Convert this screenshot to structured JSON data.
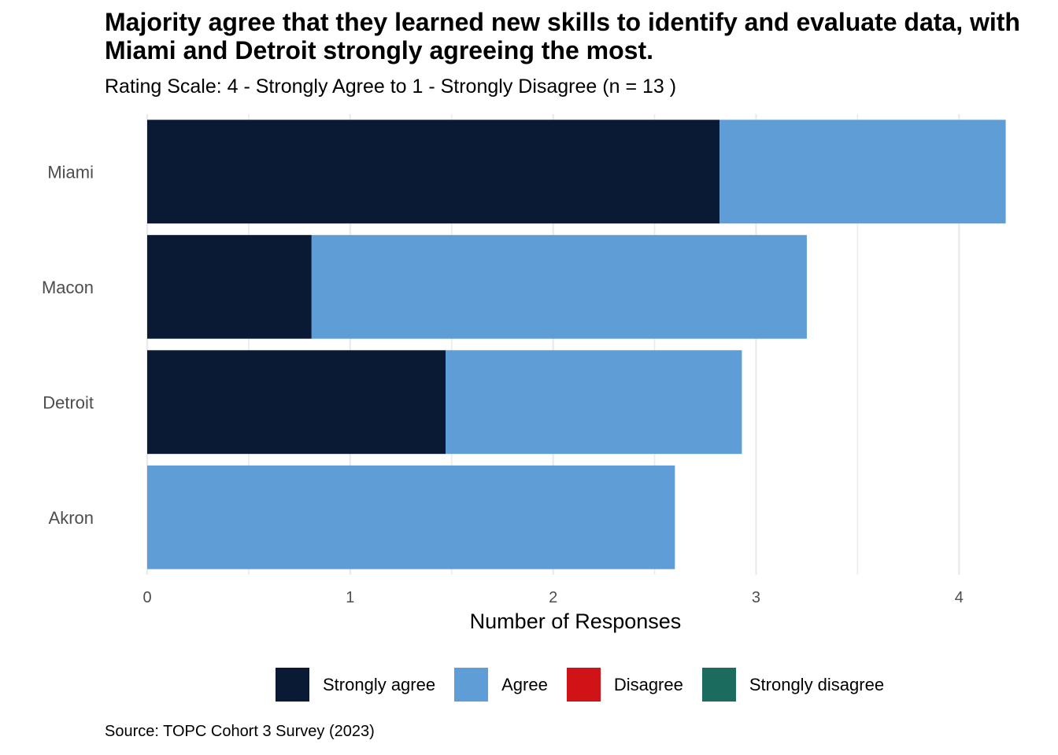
{
  "title": "Majority agree that they learned new skills to identify and evaluate data, with Miami and Detroit strongly agreeing the most.",
  "subtitle": "Rating Scale: 4 - Strongly Agree to 1 - Strongly Disagree (n = 13 )",
  "source": "Source: TOPC Cohort 3 Survey (2023)",
  "chart_data": {
    "type": "bar",
    "orientation": "horizontal",
    "stacked": true,
    "title": "Majority agree that they learned new skills to identify and evaluate data, with Miami and Detroit strongly agreeing the most.",
    "subtitle": "Rating Scale: 4 - Strongly Agree to 1 - Strongly Disagree (n = 13 )",
    "xlabel": "Number of Responses",
    "ylabel": "",
    "categories": [
      "Miami",
      "Macon",
      "Detroit",
      "Akron"
    ],
    "xlim": [
      0,
      4.22
    ],
    "xticks": [
      0,
      1,
      2,
      3,
      4
    ],
    "grid": true,
    "legend_position": "bottom",
    "series": [
      {
        "name": "Strongly agree",
        "color": "#0a1a35",
        "values": [
          2.82,
          0.81,
          1.47,
          0
        ]
      },
      {
        "name": "Agree",
        "color": "#5e9dd6",
        "values": [
          1.41,
          2.44,
          1.46,
          2.6
        ]
      },
      {
        "name": "Disagree",
        "color": "#d01317",
        "values": [
          0,
          0,
          0,
          0
        ]
      },
      {
        "name": "Strongly disagree",
        "color": "#1b6b5e",
        "values": [
          0,
          0,
          0,
          0
        ]
      }
    ]
  }
}
